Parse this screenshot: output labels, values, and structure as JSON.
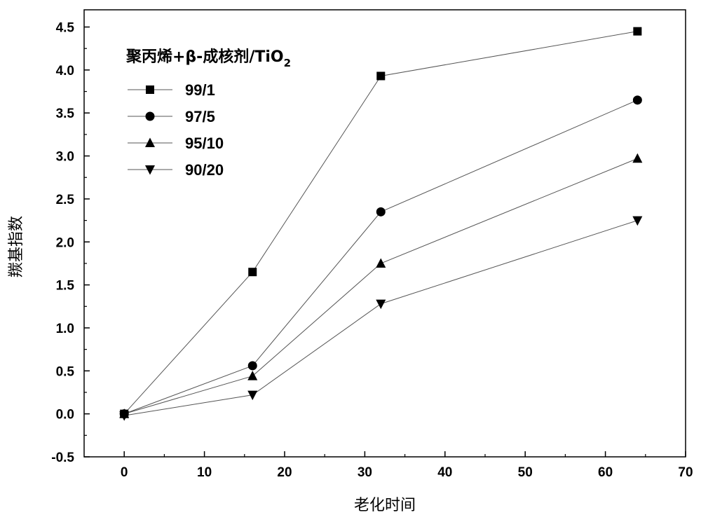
{
  "chart_data": {
    "type": "line",
    "xlabel": "老化时间",
    "ylabel": "羰基指数",
    "xlim": [
      -5,
      70
    ],
    "ylim": [
      -0.5,
      4.7
    ],
    "x_ticks": [
      "0",
      "10",
      "20",
      "30",
      "40",
      "50",
      "60",
      "70"
    ],
    "y_ticks": [
      "-0.5",
      "0.0",
      "0.5",
      "1.0",
      "1.5",
      "2.0",
      "2.5",
      "3.0",
      "3.5",
      "4.0",
      "4.5"
    ],
    "legend": {
      "title_main": "聚丙烯+β-成核剂/TiO",
      "title_sub": "2",
      "placement": "top-left"
    },
    "x": [
      0,
      16,
      32,
      64
    ],
    "series": [
      {
        "name": "99/1",
        "marker": "square",
        "values": [
          0.0,
          1.65,
          3.93,
          4.45
        ]
      },
      {
        "name": "97/5",
        "marker": "circle",
        "values": [
          0.0,
          0.56,
          2.35,
          3.65
        ]
      },
      {
        "name": "95/10",
        "marker": "triangle-up",
        "values": [
          0.0,
          0.44,
          1.75,
          2.97
        ]
      },
      {
        "name": "90/20",
        "marker": "triangle-down",
        "values": [
          -0.02,
          0.22,
          1.28,
          2.25
        ]
      }
    ],
    "colors": {
      "line": "#555555",
      "marker": "#000000",
      "axis": "#000000"
    }
  }
}
